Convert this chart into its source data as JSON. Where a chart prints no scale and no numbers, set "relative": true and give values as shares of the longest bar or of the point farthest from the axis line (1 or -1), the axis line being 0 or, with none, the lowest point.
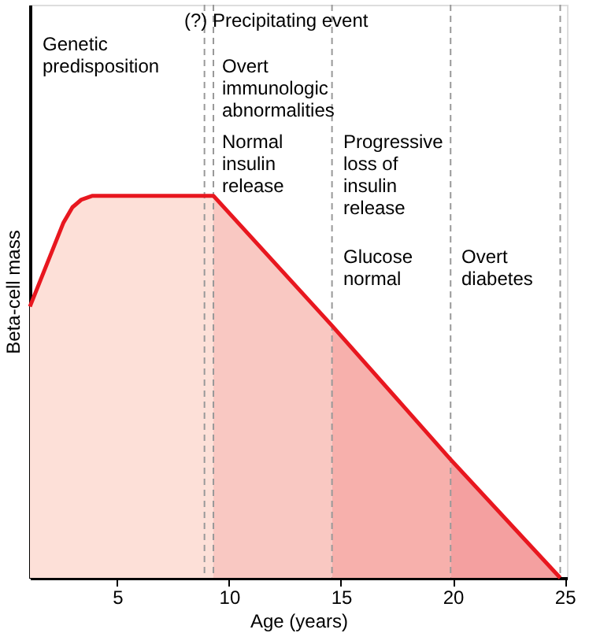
{
  "chart_data": {
    "type": "area",
    "relative": true,
    "xlabel": "Age (years)",
    "ylabel": "Beta-cell mass",
    "xlim": [
      1.1,
      25.1
    ],
    "xticks": [
      5,
      10,
      15,
      20,
      25
    ],
    "grid": false,
    "series": [
      {
        "color": "#fde0d8",
        "x": [
          1.1,
          2.6,
          3.0,
          3.4,
          3.9,
          9.3
        ],
        "values": [
          0.71,
          0.93,
          0.97,
          0.99,
          1.0,
          1.0
        ]
      },
      {
        "color": "#f9c8c2",
        "x": [
          9.3,
          14.6
        ],
        "values": [
          1.0,
          0.66
        ]
      },
      {
        "color": "#f7b0ac",
        "x": [
          14.6,
          19.9
        ],
        "values": [
          0.66,
          0.31
        ]
      },
      {
        "color": "#f4a0a0",
        "x": [
          19.9,
          24.8
        ],
        "values": [
          0.31,
          0.0
        ]
      },
      {
        "type": "line",
        "color": "#e8171f",
        "line_style": "solid",
        "x": [
          1.1,
          2.6,
          3.0,
          3.4,
          3.9,
          9.3,
          14.6,
          19.9,
          24.8
        ],
        "values": [
          0.71,
          0.93,
          0.97,
          0.99,
          1.0,
          1.0,
          0.66,
          0.31,
          0.0
        ]
      }
    ],
    "ref_lines": [
      {
        "axis": "x",
        "value": 8.9,
        "color": "#999999",
        "line_style": "dashed"
      },
      {
        "axis": "x",
        "value": 9.3,
        "color": "#999999",
        "line_style": "dashed"
      },
      {
        "axis": "x",
        "value": 14.6,
        "color": "#999999",
        "line_style": "dashed"
      },
      {
        "axis": "x",
        "value": 19.9,
        "color": "#999999",
        "line_style": "dashed"
      },
      {
        "axis": "x",
        "value": 24.8,
        "color": "#999999",
        "line_style": "dashed"
      }
    ],
    "annotations": [
      "(?) Precipitating event",
      "Genetic\npredisposition",
      "Overt\nimmunologic\nabnormalities",
      "Normal\ninsulin\nrelease",
      "Progressive\nloss of\ninsulin\nrelease",
      "Glucose\nnormal",
      "Overt\ndiabetes"
    ]
  }
}
